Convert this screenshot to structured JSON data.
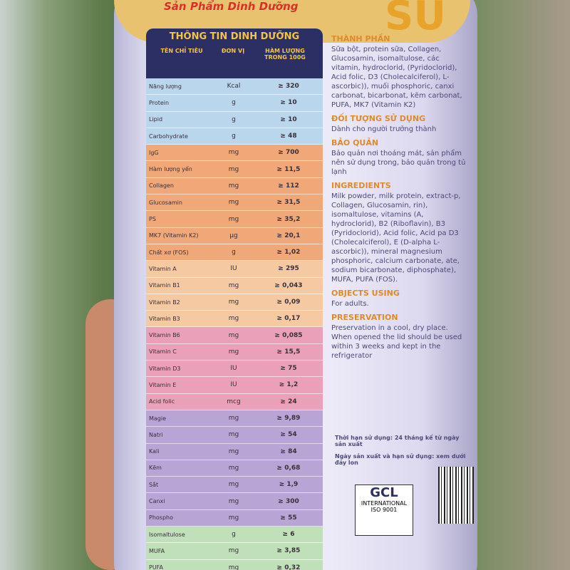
{
  "brand": {
    "tagline": "Sản Phẩm Dinh Dưỡng",
    "logo": "SU"
  },
  "table": {
    "title": "THÔNG TIN DINH DƯỠNG",
    "columns": [
      "TÊN CHỈ TIÊU",
      "ĐƠN VỊ",
      "HÀM LƯỢNG TRONG 100G"
    ],
    "rows": [
      [
        "Năng lượng",
        "Kcal",
        "≥ 320"
      ],
      [
        "Protein",
        "g",
        "≥ 10"
      ],
      [
        "Lipid",
        "g",
        "≥ 10"
      ],
      [
        "Carbohydrate",
        "g",
        "≥ 48"
      ],
      [
        "IgG",
        "mg",
        "≥ 700"
      ],
      [
        "Hàm lượng yến",
        "mg",
        "≥ 11,5"
      ],
      [
        "Collagen",
        "mg",
        "≥ 112"
      ],
      [
        "Glucosamin",
        "mg",
        "≥ 31,5"
      ],
      [
        "PS",
        "mg",
        "≥ 35,2"
      ],
      [
        "MK7 (Vitamin K2)",
        "µg",
        "≥ 20,1"
      ],
      [
        "Chất xơ (FOS)",
        "g",
        "≥ 1,02"
      ],
      [
        "Vitamin A",
        "IU",
        "≥ 295"
      ],
      [
        "Vitamin B1",
        "mg",
        "≥ 0,043"
      ],
      [
        "Vitamin B2",
        "mg",
        "≥ 0,09"
      ],
      [
        "Vitamin B3",
        "mg",
        "≥ 0,17"
      ],
      [
        "Vitamin B6",
        "mg",
        "≥ 0,085"
      ],
      [
        "Vitamin C",
        "mg",
        "≥ 15,5"
      ],
      [
        "Vitamin D3",
        "IU",
        "≥ 75"
      ],
      [
        "Vitamin E",
        "IU",
        "≥ 1,2"
      ],
      [
        "Acid folic",
        "mcg",
        "≥ 24"
      ],
      [
        "Magie",
        "mg",
        "≥ 9,89"
      ],
      [
        "Natri",
        "mg",
        "≥ 54"
      ],
      [
        "Kali",
        "mg",
        "≥ 84"
      ],
      [
        "Kẽm",
        "mg",
        "≥ 0,68"
      ],
      [
        "Sắt",
        "mg",
        "≥ 1,9"
      ],
      [
        "Canxi",
        "mg",
        "≥ 300"
      ],
      [
        "Phospho",
        "mg",
        "≥ 55"
      ],
      [
        "Isomaltulose",
        "g",
        "≥ 6"
      ],
      [
        "MUFA",
        "mg",
        "≥ 3,85"
      ],
      [
        "PUFA",
        "mg",
        "≥ 0,32"
      ]
    ]
  },
  "sections": [
    {
      "heading": "THÀNH PHẦN",
      "text": "Sữa bột, protein sữa, Collagen, Glucosamin, isomaltulose, các vitamin, hydroclorid, (Pyridoclorid), Acid folic, D3 (Cholecalciferol), L-ascorbic)), muối phosphoric, canxi carbonat, bicarbonat, kẽm carbonat, PUFA, MK7 (Vitamin K2)"
    },
    {
      "heading": "ĐỐI TƯỢNG SỬ DỤNG",
      "text": "Dành cho người trưởng thành"
    },
    {
      "heading": "BẢO QUẢN",
      "text": "Bảo quản nơi thoáng mát, sản phẩm nên sử dụng trong, bảo quản trong tủ lạnh"
    },
    {
      "heading": "INGREDIENTS",
      "text": "Milk powder, milk protein, extract-p, Collagen, Glucosamin, rin), isomaltulose, vitamins (A, hydroclorid), B2 (Riboflavin), B3 (Pyridoclorid), Acid folic, Acid pa D3 (Cholecalciferol), E (D-alpha L-ascorbic)), mineral magnesium phosphoric, calcium carbonate, ate, sodium bicarbonate, diphosphate), MUFA, PUFA (FOS)."
    },
    {
      "heading": "OBJECTS USING",
      "text": "For adults."
    },
    {
      "heading": "PRESERVATION",
      "text": "Preservation in a cool, dry place. When opened the lid should be used within 3 weeks and kept in the refrigerator"
    }
  ],
  "notes": [
    "Thời hạn sử dụng: 24 tháng kể từ ngày sản xuất",
    "Ngày sản xuất và hạn sử dụng: xem dưới đáy lon"
  ],
  "cert": {
    "logo": "GCL",
    "sub": "INTERNATIONAL",
    "iso": "ISO 9001"
  }
}
